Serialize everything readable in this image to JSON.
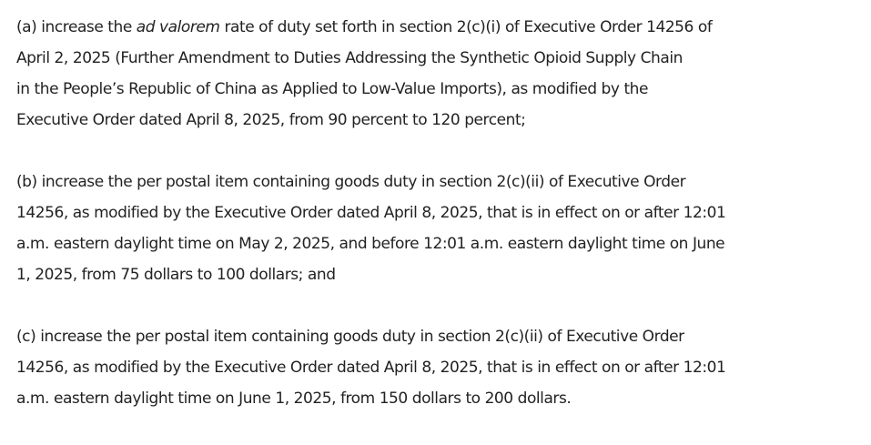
{
  "paragraphs": {
    "a": {
      "line1_pre": "(a)  increase the ",
      "line1_italic": "ad valorem",
      "line1_post": " rate of duty set forth in section 2(c)(i) of Executive Order 14256 of",
      "lines": [
        "April 2, 2025 (Further Amendment to Duties Addressing the Synthetic Opioid Supply Chain",
        "in the People’s Republic of China as Applied to Low-Value Imports), as modified by the",
        "Executive Order dated April 8, 2025, from 90 percent to 120 percent;"
      ]
    },
    "b": {
      "lines": [
        "(b)  increase the per postal item containing goods duty in section 2(c)(ii) of Executive Order",
        "14256, as modified by the Executive Order dated April 8, 2025, that is in effect on or after 12:01",
        "a.m. eastern daylight time on May 2, 2025, and before 12:01 a.m. eastern daylight time on June",
        "1, 2025, from 75 dollars to 100 dollars; and"
      ]
    },
    "c": {
      "lines": [
        "(c)  increase the per postal item containing goods duty in section 2(c)(ii) of Executive Order",
        "14256, as modified by the Executive Order dated April 8, 2025, that is in effect on or after 12:01",
        "a.m. eastern daylight time on June 1, 2025, from 150 dollars to 200 dollars."
      ]
    }
  }
}
